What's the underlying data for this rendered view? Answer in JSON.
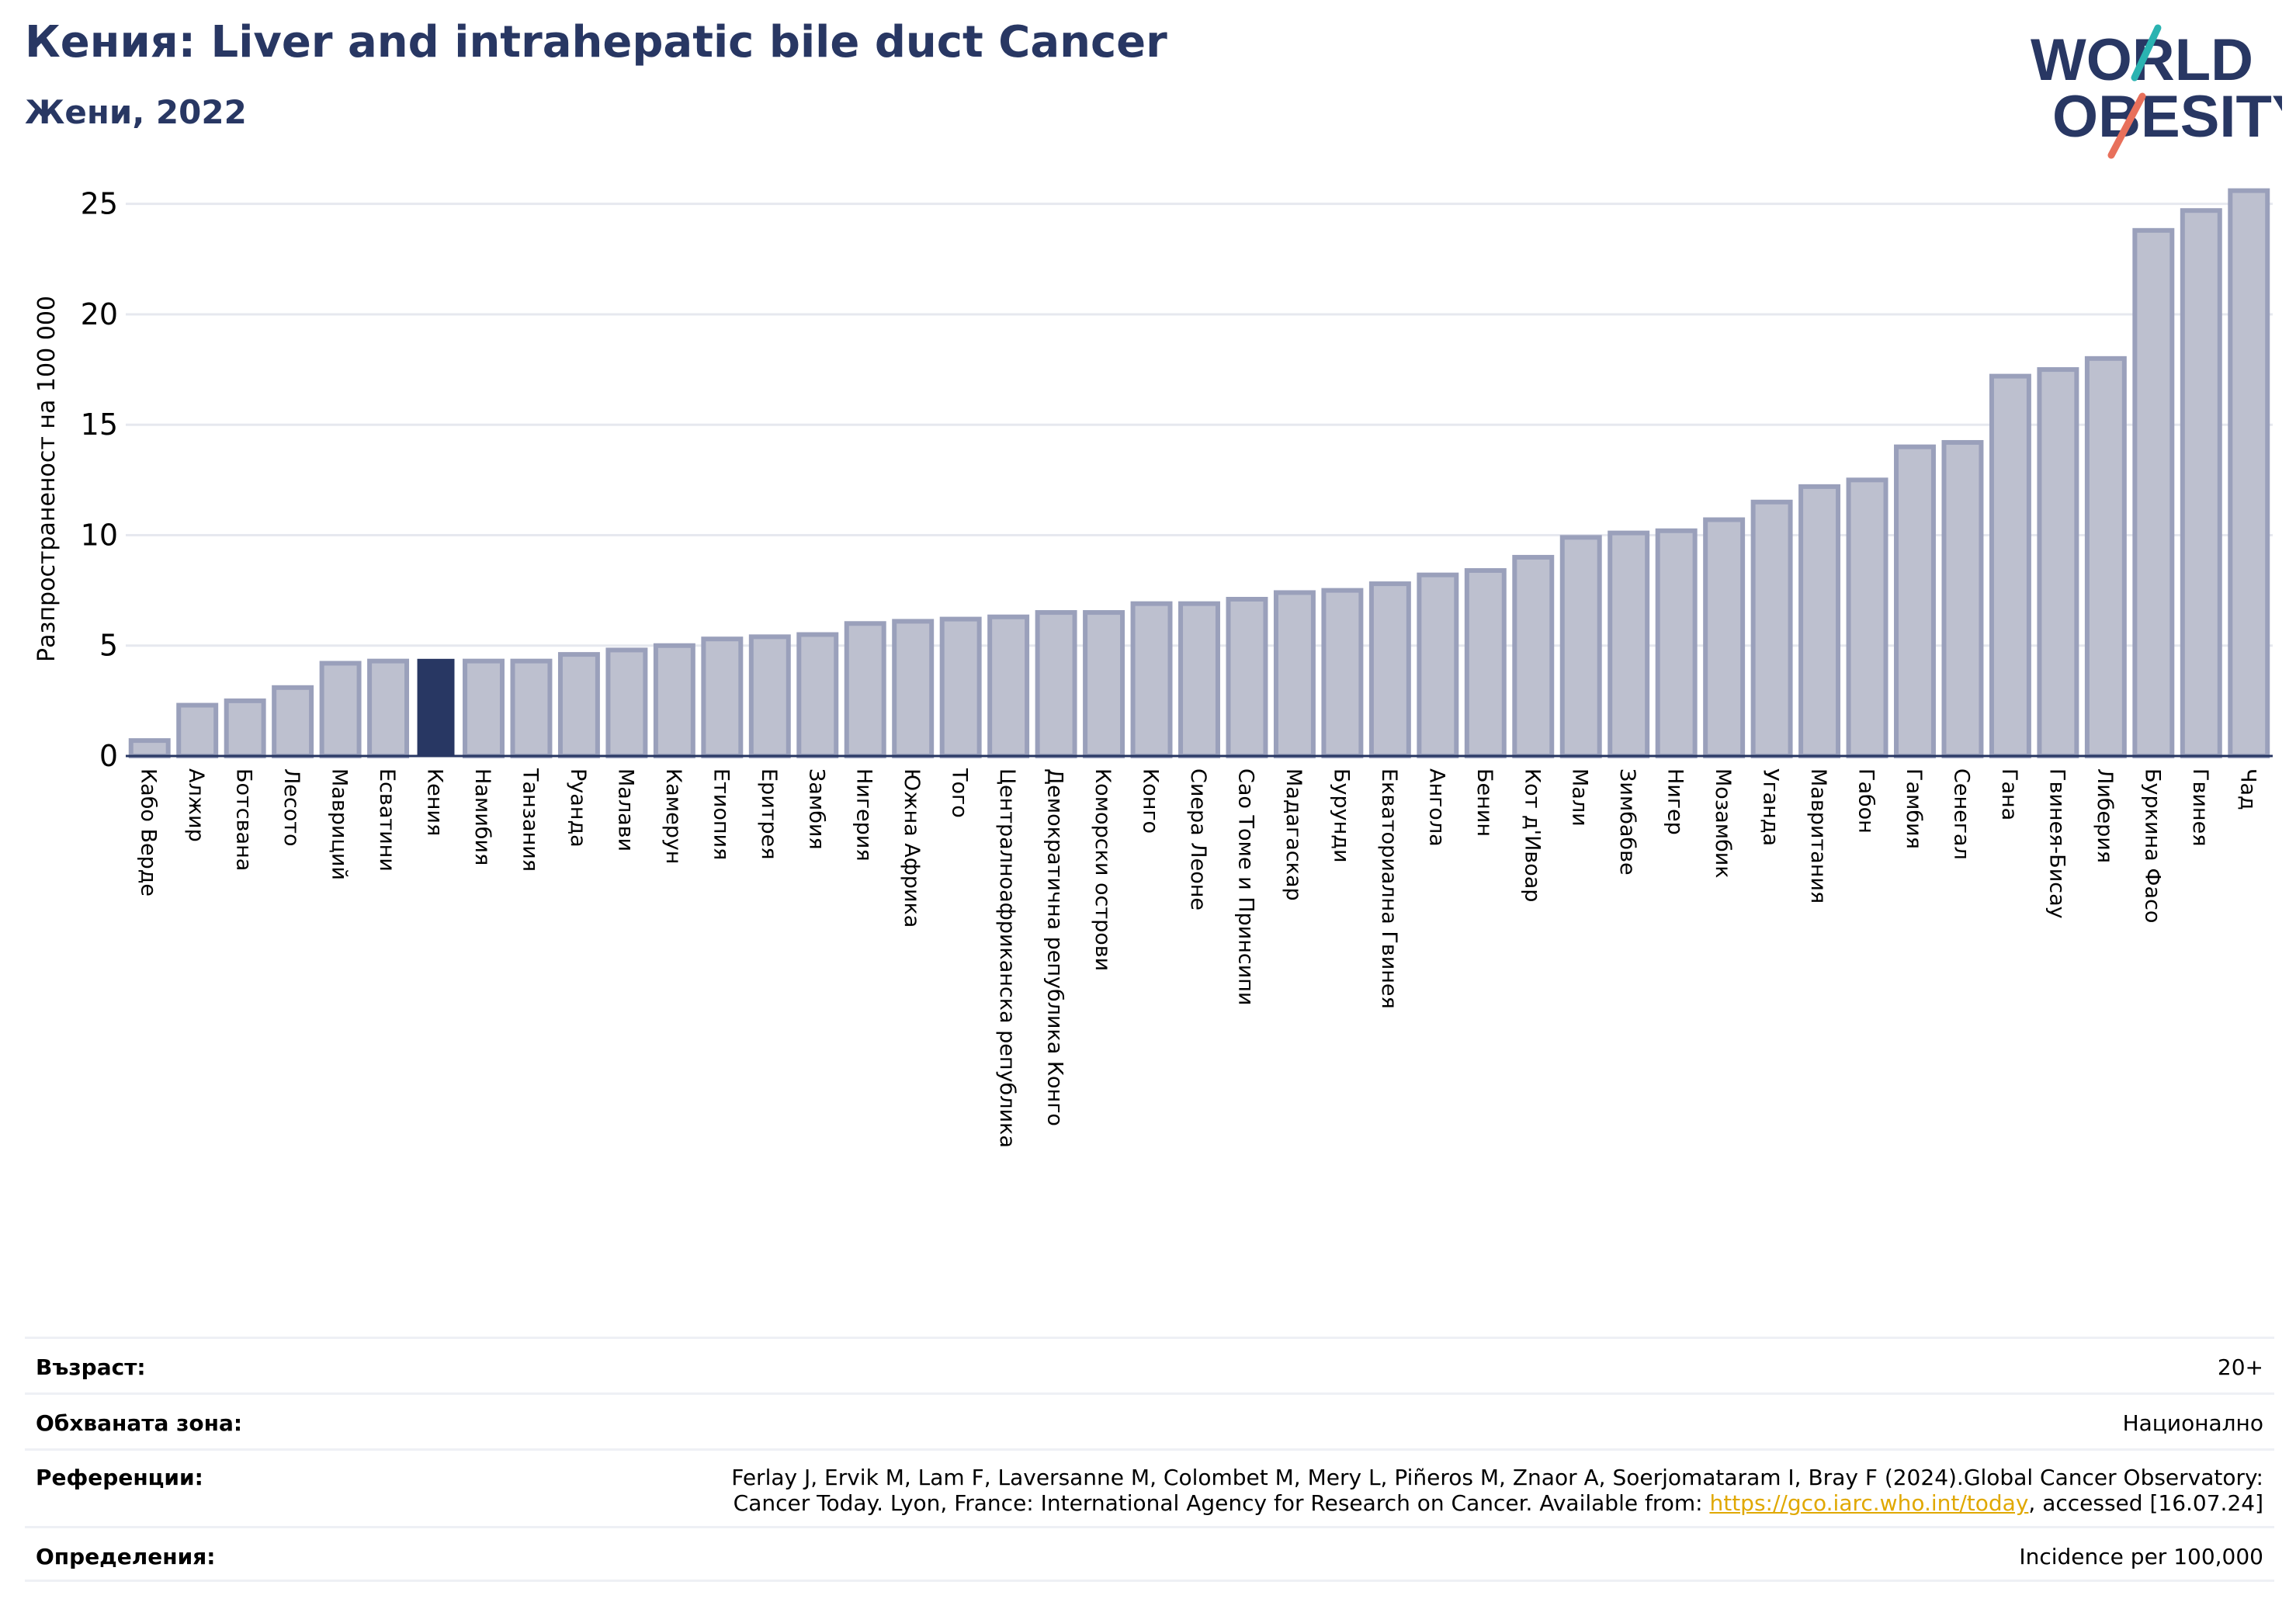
{
  "header": {
    "title": "Кения: Liver and intrahepatic bile duct Cancer",
    "subtitle": "Жени, 2022"
  },
  "logo": {
    "line1": "WORLD",
    "line2": "OBESITY"
  },
  "colors": {
    "bar": "#bdc0cf",
    "bar_edge": "#9aa0bb",
    "highlight": "#283763",
    "title": "#283763",
    "grid": "#e6e8ef",
    "link": "#e0a800"
  },
  "chart_data": {
    "type": "bar",
    "ylabel": "Разпространеност  на 100 000",
    "ylim": [
      0,
      26.5
    ],
    "yticks": [
      0,
      5,
      10,
      15,
      20,
      25
    ],
    "highlight": "Кения",
    "grid": true,
    "categories": [
      "Кабо Верде",
      "Алжир",
      "Ботсвана",
      "Лесото",
      "Мавриций",
      "Есватини",
      "Кения",
      "Намибия",
      "Танзания",
      "Руанда",
      "Малави",
      "Камерун",
      "Етиопия",
      "Еритрея",
      "Замбия",
      "Нигерия",
      "Южна Африка",
      "Того",
      "Централноафриканска република",
      "Демократична република Конго",
      "Коморски острови",
      "Конго",
      "Сиера Леоне",
      "Сао Томе и Принсипи",
      "Мадагаскар",
      "Бурунди",
      "Екваториална Гвинея",
      "Ангола",
      "Бенин",
      "Кот д'Ивоар",
      "Мали",
      "Зимбабве",
      "Нигер",
      "Мозамбик",
      "Уганда",
      "Мавритания",
      "Габон",
      "Гамбия",
      "Сенегал",
      "Гана",
      "Гвинея-Бисау",
      "Либерия",
      "Буркина Фасо",
      "Гвинея",
      "Чад"
    ],
    "values": [
      0.7,
      2.3,
      2.5,
      3.1,
      4.2,
      4.3,
      4.4,
      4.3,
      4.3,
      4.6,
      4.8,
      5.0,
      5.3,
      5.4,
      5.5,
      6.0,
      6.1,
      6.2,
      6.3,
      6.5,
      6.5,
      6.9,
      6.9,
      7.1,
      7.4,
      7.5,
      7.8,
      8.2,
      8.4,
      9.0,
      9.9,
      10.1,
      10.2,
      10.7,
      11.5,
      12.2,
      12.5,
      14.0,
      14.2,
      17.2,
      17.5,
      18.0,
      23.8,
      24.7,
      25.6
    ]
  },
  "info": {
    "age_label": "Възраст:",
    "age_value": "20+",
    "area_label": "Обхваната зона:",
    "area_value": "Национално",
    "ref_label": "Референции:",
    "ref_line1": "Ferlay J, Ervik M, Lam F, Laversanne M, Colombet M, Mery L, Piñeros M, Znaor A, Soerjomataram I, Bray F (2024).Global Cancer Observatory:",
    "ref_line2_pre": "Cancer Today. Lyon, France: International Agency for Research on Cancer. Available from: ",
    "ref_link": "https://gco.iarc.who.int/today",
    "ref_line2_post": ", accessed [16.07.24]",
    "def_label": "Определения:",
    "def_value": "Incidence per 100,000"
  }
}
